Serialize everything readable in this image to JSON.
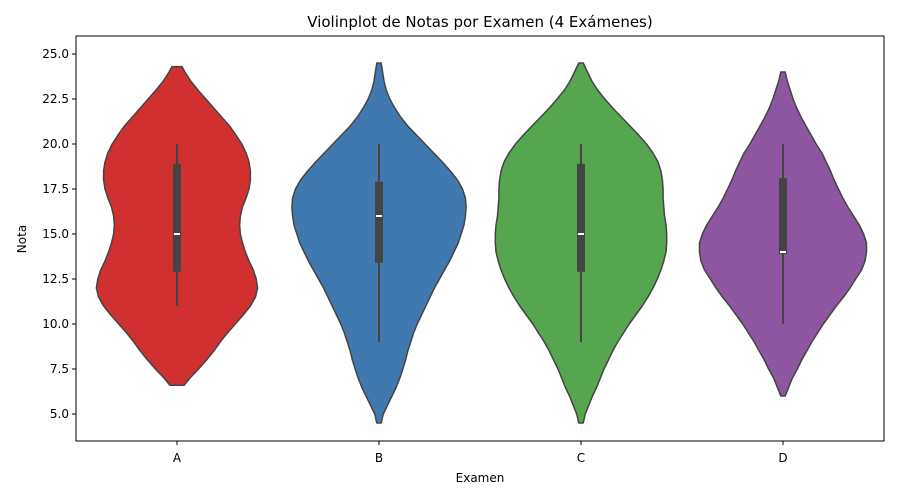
{
  "chart_data": {
    "type": "violin",
    "title": "Violinplot de Notas por Examen (4 Exámenes)",
    "xlabel": "Examen",
    "ylabel": "Nota",
    "ylim": [
      3.5,
      26.0
    ],
    "yticks": [
      "5.0",
      "7.5",
      "10.0",
      "12.5",
      "15.0",
      "17.5",
      "20.0",
      "22.5",
      "25.0"
    ],
    "categories": [
      "A",
      "B",
      "C",
      "D"
    ],
    "grid": false,
    "colors": [
      "#d0302f",
      "#4079b0",
      "#55a64f",
      "#8e55a0"
    ],
    "edge_color": "#444444",
    "series": [
      {
        "category": "A",
        "box": {
          "min": 11,
          "q1": 12.9,
          "median": 15,
          "q3": 18.9,
          "max": 20
        },
        "density": [
          [
            6.6,
            0.1
          ],
          [
            7.0,
            0.18
          ],
          [
            7.5,
            0.3
          ],
          [
            8.0,
            0.41
          ],
          [
            8.5,
            0.51
          ],
          [
            9.0,
            0.6
          ],
          [
            9.5,
            0.7
          ],
          [
            10.0,
            0.81
          ],
          [
            10.5,
            0.92
          ],
          [
            11.0,
            1.02
          ],
          [
            11.5,
            1.09
          ],
          [
            12.0,
            1.12
          ],
          [
            12.5,
            1.1
          ],
          [
            13.0,
            1.06
          ],
          [
            13.5,
            1.0
          ],
          [
            14.0,
            0.95
          ],
          [
            14.5,
            0.91
          ],
          [
            15.0,
            0.88
          ],
          [
            15.5,
            0.87
          ],
          [
            16.0,
            0.88
          ],
          [
            16.5,
            0.91
          ],
          [
            17.0,
            0.96
          ],
          [
            17.5,
            1.0
          ],
          [
            18.0,
            1.02
          ],
          [
            18.5,
            1.02
          ],
          [
            19.0,
            1.0
          ],
          [
            19.5,
            0.96
          ],
          [
            20.0,
            0.9
          ],
          [
            20.5,
            0.82
          ],
          [
            21.0,
            0.73
          ],
          [
            21.5,
            0.62
          ],
          [
            22.0,
            0.51
          ],
          [
            22.5,
            0.4
          ],
          [
            23.0,
            0.29
          ],
          [
            23.5,
            0.19
          ],
          [
            24.0,
            0.11
          ],
          [
            24.3,
            0.07
          ]
        ]
      },
      {
        "category": "B",
        "box": {
          "min": 9,
          "q1": 13.4,
          "median": 16,
          "q3": 17.9,
          "max": 20
        },
        "density": [
          [
            4.5,
            0.03
          ],
          [
            5.0,
            0.06
          ],
          [
            5.5,
            0.12
          ],
          [
            6.0,
            0.18
          ],
          [
            6.5,
            0.24
          ],
          [
            7.0,
            0.29
          ],
          [
            7.5,
            0.33
          ],
          [
            8.0,
            0.37
          ],
          [
            8.5,
            0.4
          ],
          [
            9.0,
            0.44
          ],
          [
            9.5,
            0.48
          ],
          [
            10.0,
            0.53
          ],
          [
            10.5,
            0.59
          ],
          [
            11.0,
            0.65
          ],
          [
            11.5,
            0.71
          ],
          [
            12.0,
            0.77
          ],
          [
            12.5,
            0.84
          ],
          [
            13.0,
            0.91
          ],
          [
            13.5,
            0.98
          ],
          [
            14.0,
            1.04
          ],
          [
            14.5,
            1.1
          ],
          [
            15.0,
            1.14
          ],
          [
            15.5,
            1.18
          ],
          [
            16.0,
            1.2
          ],
          [
            16.5,
            1.21
          ],
          [
            17.0,
            1.2
          ],
          [
            17.5,
            1.16
          ],
          [
            18.0,
            1.09
          ],
          [
            18.5,
            0.99
          ],
          [
            19.0,
            0.88
          ],
          [
            19.5,
            0.76
          ],
          [
            20.0,
            0.64
          ],
          [
            20.5,
            0.52
          ],
          [
            21.0,
            0.4
          ],
          [
            21.5,
            0.3
          ],
          [
            22.0,
            0.22
          ],
          [
            22.5,
            0.15
          ],
          [
            23.0,
            0.1
          ],
          [
            23.5,
            0.07
          ],
          [
            24.0,
            0.05
          ],
          [
            24.5,
            0.03
          ]
        ]
      },
      {
        "category": "C",
        "box": {
          "min": 9,
          "q1": 12.9,
          "median": 15,
          "q3": 18.9,
          "max": 20
        },
        "density": [
          [
            4.5,
            0.03
          ],
          [
            5.0,
            0.06
          ],
          [
            5.5,
            0.11
          ],
          [
            6.0,
            0.16
          ],
          [
            6.5,
            0.22
          ],
          [
            7.0,
            0.27
          ],
          [
            7.5,
            0.32
          ],
          [
            8.0,
            0.38
          ],
          [
            8.5,
            0.44
          ],
          [
            9.0,
            0.51
          ],
          [
            9.5,
            0.59
          ],
          [
            10.0,
            0.67
          ],
          [
            10.5,
            0.76
          ],
          [
            11.0,
            0.85
          ],
          [
            11.5,
            0.93
          ],
          [
            12.0,
            1.0
          ],
          [
            12.5,
            1.06
          ],
          [
            13.0,
            1.11
          ],
          [
            13.5,
            1.15
          ],
          [
            14.0,
            1.18
          ],
          [
            14.5,
            1.19
          ],
          [
            15.0,
            1.19
          ],
          [
            15.5,
            1.18
          ],
          [
            16.0,
            1.16
          ],
          [
            16.5,
            1.15
          ],
          [
            17.0,
            1.14
          ],
          [
            17.5,
            1.14
          ],
          [
            18.0,
            1.13
          ],
          [
            18.5,
            1.11
          ],
          [
            19.0,
            1.07
          ],
          [
            19.5,
            1.0
          ],
          [
            20.0,
            0.91
          ],
          [
            20.5,
            0.8
          ],
          [
            21.0,
            0.68
          ],
          [
            21.5,
            0.56
          ],
          [
            22.0,
            0.44
          ],
          [
            22.5,
            0.33
          ],
          [
            23.0,
            0.23
          ],
          [
            23.5,
            0.15
          ],
          [
            24.0,
            0.09
          ],
          [
            24.5,
            0.03
          ]
        ]
      },
      {
        "category": "D",
        "box": {
          "min": 10,
          "q1": 13.9,
          "median": 14,
          "q3": 18.1,
          "max": 20
        },
        "density": [
          [
            6.0,
            0.03
          ],
          [
            6.5,
            0.08
          ],
          [
            7.0,
            0.13
          ],
          [
            7.5,
            0.2
          ],
          [
            8.0,
            0.26
          ],
          [
            8.5,
            0.33
          ],
          [
            9.0,
            0.4
          ],
          [
            9.5,
            0.48
          ],
          [
            10.0,
            0.56
          ],
          [
            10.5,
            0.65
          ],
          [
            11.0,
            0.74
          ],
          [
            11.5,
            0.84
          ],
          [
            12.0,
            0.93
          ],
          [
            12.5,
            1.01
          ],
          [
            13.0,
            1.09
          ],
          [
            13.5,
            1.14
          ],
          [
            14.0,
            1.16
          ],
          [
            14.5,
            1.16
          ],
          [
            15.0,
            1.12
          ],
          [
            15.5,
            1.06
          ],
          [
            16.0,
            0.98
          ],
          [
            16.5,
            0.9
          ],
          [
            17.0,
            0.83
          ],
          [
            17.5,
            0.77
          ],
          [
            18.0,
            0.71
          ],
          [
            18.5,
            0.66
          ],
          [
            19.0,
            0.6
          ],
          [
            19.5,
            0.54
          ],
          [
            20.0,
            0.46
          ],
          [
            20.5,
            0.39
          ],
          [
            21.0,
            0.32
          ],
          [
            21.5,
            0.25
          ],
          [
            22.0,
            0.19
          ],
          [
            22.5,
            0.14
          ],
          [
            23.0,
            0.1
          ],
          [
            23.5,
            0.06
          ],
          [
            24.0,
            0.03
          ]
        ]
      }
    ]
  }
}
